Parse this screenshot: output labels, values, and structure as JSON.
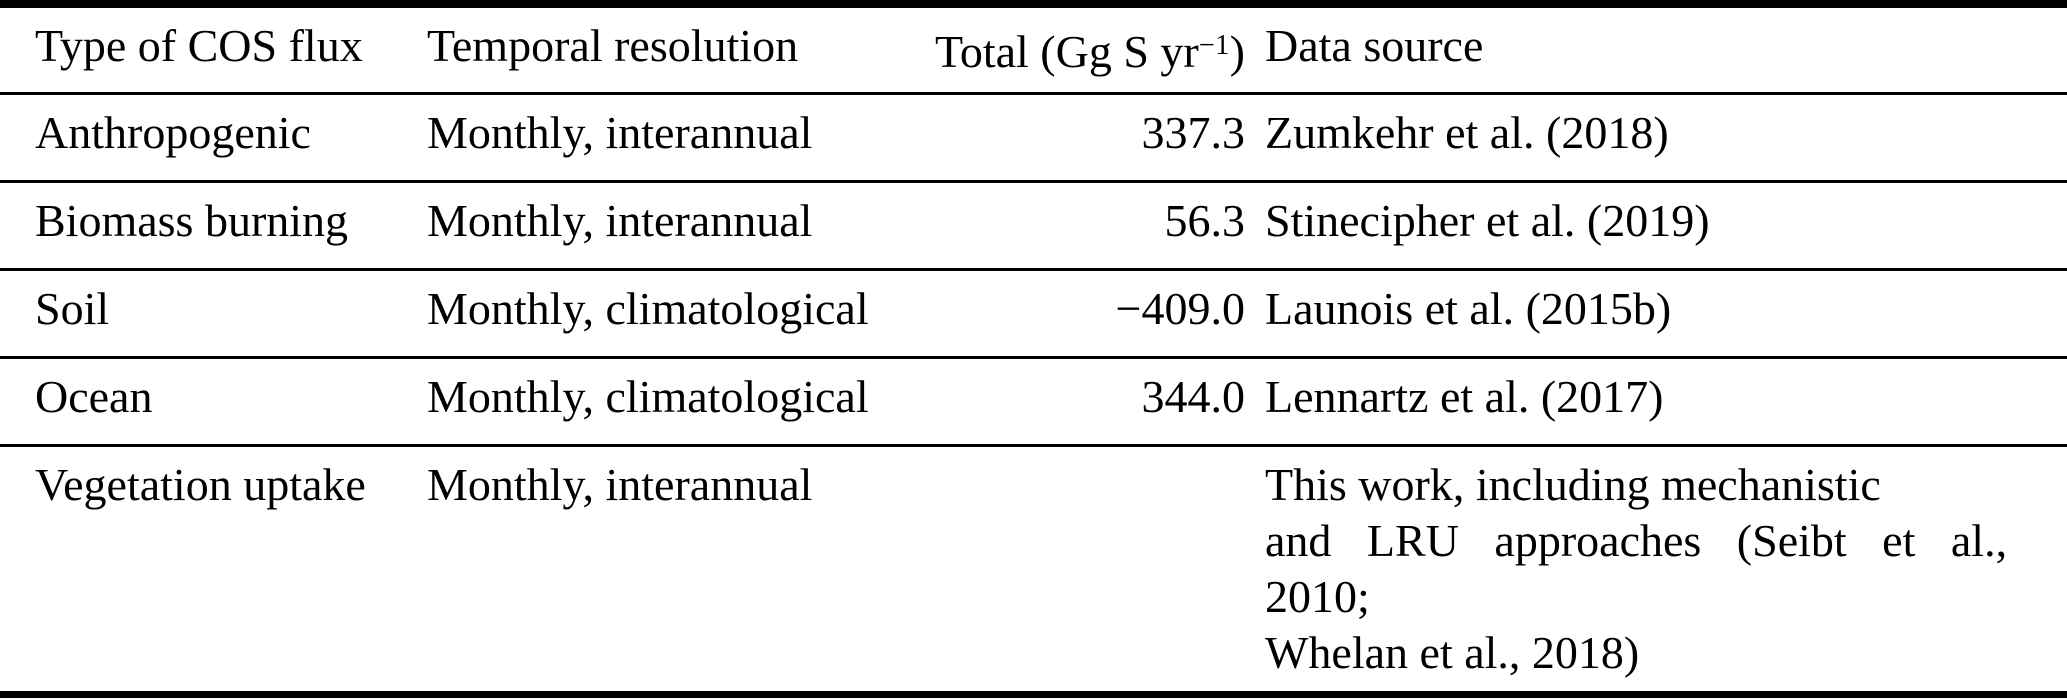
{
  "table": {
    "headers": {
      "flux": "Type of COS flux",
      "resolution": "Temporal resolution",
      "total_prefix": "Total (Gg S yr",
      "total_sup": "−1",
      "total_suffix": ")",
      "source": "Data source"
    },
    "rows": [
      {
        "flux": "Anthropogenic",
        "resolution": "Monthly, interannual",
        "total": "337.3",
        "source": "Zumkehr et al. (2018)"
      },
      {
        "flux": "Biomass burning",
        "resolution": "Monthly, interannual",
        "total": "56.3",
        "source": "Stinecipher et al. (2019)"
      },
      {
        "flux": "Soil",
        "resolution": "Monthly, climatological",
        "total": "−409.0",
        "source": "Launois et al. (2015b)"
      },
      {
        "flux": "Ocean",
        "resolution": "Monthly, climatological",
        "total": "344.0",
        "source": "Lennartz et al. (2017)"
      },
      {
        "flux": "Vegetation uptake",
        "resolution": "Monthly, interannual",
        "total": "",
        "source_lines": [
          "This work, including mechanistic",
          "and LRU approaches (Seibt et al.,",
          "2010;",
          "Whelan et al., 2018)"
        ]
      }
    ]
  }
}
